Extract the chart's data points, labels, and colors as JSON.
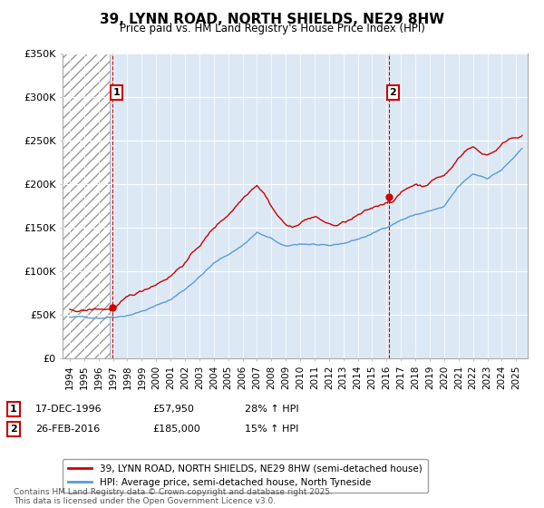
{
  "title": "39, LYNN ROAD, NORTH SHIELDS, NE29 8HW",
  "subtitle": "Price paid vs. HM Land Registry's House Price Index (HPI)",
  "xlim_start": 1993.5,
  "xlim_end": 2025.8,
  "ylim_min": 0,
  "ylim_max": 350000,
  "yticks": [
    0,
    50000,
    100000,
    150000,
    200000,
    250000,
    300000,
    350000
  ],
  "ytick_labels": [
    "£0",
    "£50K",
    "£100K",
    "£150K",
    "£200K",
    "£250K",
    "£300K",
    "£350K"
  ],
  "xticks": [
    1994,
    1995,
    1996,
    1997,
    1998,
    1999,
    2000,
    2001,
    2002,
    2003,
    2004,
    2005,
    2006,
    2007,
    2008,
    2009,
    2010,
    2011,
    2012,
    2013,
    2014,
    2015,
    2016,
    2017,
    2018,
    2019,
    2020,
    2021,
    2022,
    2023,
    2024,
    2025
  ],
  "sale1_date": 1996.96,
  "sale1_price": 57950,
  "sale1_label": "1",
  "sale2_date": 2016.15,
  "sale2_price": 185000,
  "sale2_label": "2",
  "sale1_info": "17-DEC-1996",
  "sale1_price_str": "£57,950",
  "sale1_hpi": "28% ↑ HPI",
  "sale2_info": "26-FEB-2016",
  "sale2_price_str": "£185,000",
  "sale2_hpi": "15% ↑ HPI",
  "red_color": "#cc0000",
  "blue_color": "#5b9bd5",
  "plot_bg_color": "#dce9f5",
  "hatch_color": "#ffffff",
  "background_color": "#ffffff",
  "legend_line1": "39, LYNN ROAD, NORTH SHIELDS, NE29 8HW (semi-detached house)",
  "legend_line2": "HPI: Average price, semi-detached house, North Tyneside",
  "footer": "Contains HM Land Registry data © Crown copyright and database right 2025.\nThis data is licensed under the Open Government Licence v3.0.",
  "hatch_end": 1996.75
}
